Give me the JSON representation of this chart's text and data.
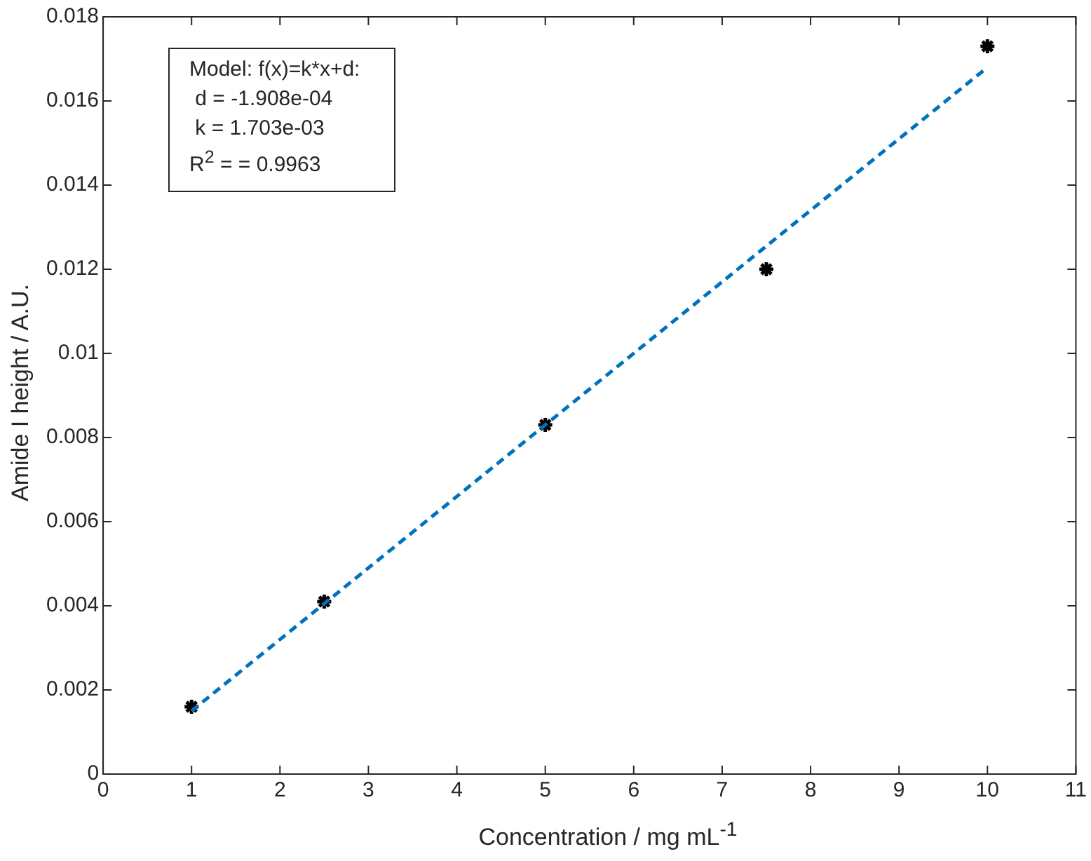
{
  "chart_data": {
    "type": "scatter",
    "xlabel": "Concentration / mg mL$^{-1}$",
    "ylabel": "Amide I height / A.U.",
    "series": [
      {
        "color": "#000000",
        "marker": "cross",
        "x": [
          1,
          2.5,
          5,
          7.5,
          10
        ],
        "values": [
          0.0016,
          0.0041,
          0.0083,
          0.012,
          0.0173
        ]
      },
      {
        "type": "line",
        "color": "#0072bd",
        "marker": "none",
        "line_style": "dashed",
        "x": [
          1,
          10
        ],
        "values": [
          0.0015,
          0.0168
        ]
      }
    ],
    "annotations": [
      "Model: f(x)=k*x+d:",
      " d = -1.908e-04",
      " k = 1.703e-03",
      "R$^{2}$ = = 0.9963"
    ],
    "xlim": [
      0,
      11
    ],
    "xticks": [
      0,
      1,
      2,
      3,
      4,
      5,
      6,
      7,
      8,
      9,
      10,
      11
    ],
    "ylim": [
      0,
      0.018
    ],
    "yticks": [
      0,
      0.002,
      0.004,
      0.006,
      0.008,
      0.01,
      0.012,
      0.014,
      0.016,
      0.018
    ],
    "grid": false,
    "legend": false
  }
}
